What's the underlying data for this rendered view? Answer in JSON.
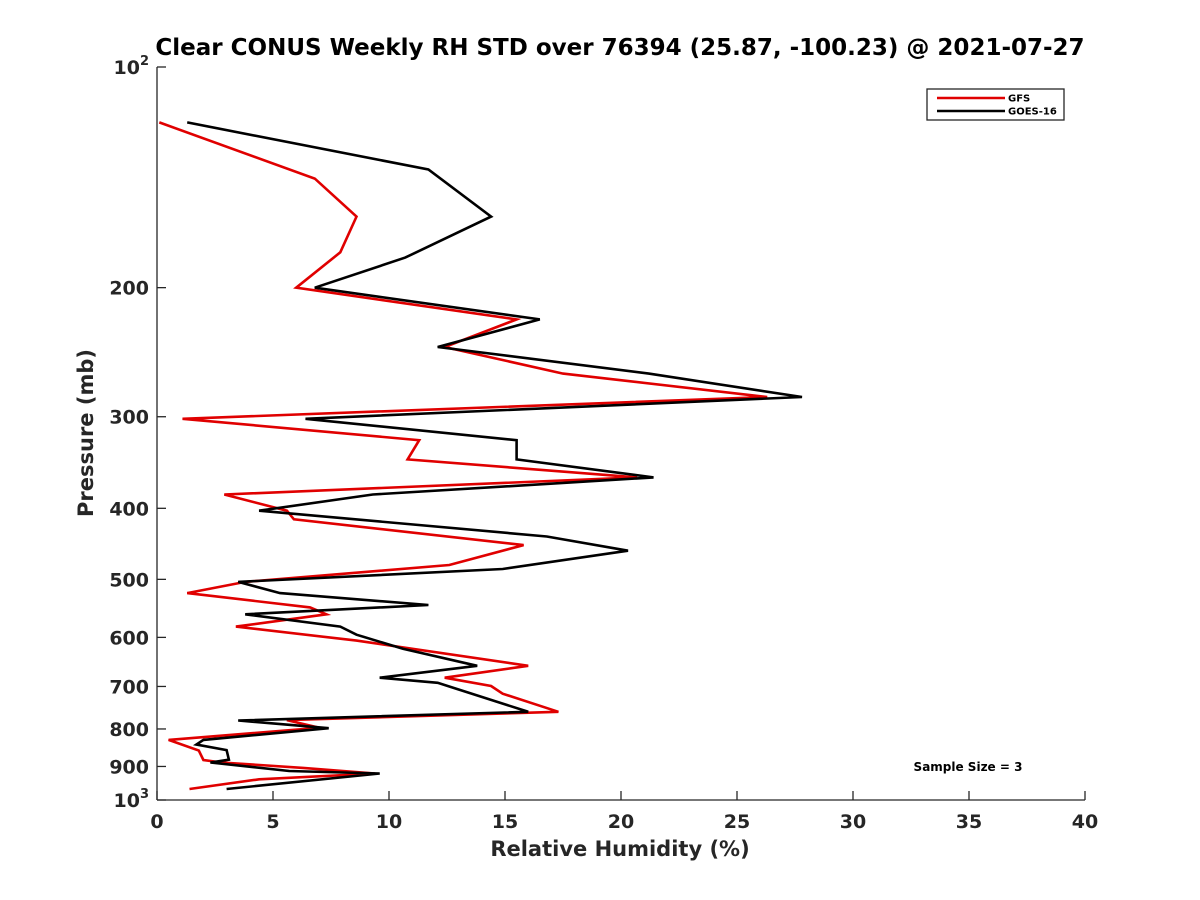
{
  "chart_data": {
    "type": "line",
    "title": "Clear CONUS Weekly RH STD over 76394 (25.87, -100.23) @ 2021-07-27",
    "xlabel": "Relative Humidity (%)",
    "ylabel": "Pressure (mb)",
    "xlim": [
      0,
      40
    ],
    "ylim": [
      100,
      1000
    ],
    "yscale": "log",
    "y_reversed": true,
    "grid": false,
    "x_ticks": [
      0,
      5,
      10,
      15,
      20,
      25,
      30,
      35,
      40
    ],
    "x_tick_labels": [
      "0",
      "5",
      "10",
      "15",
      "20",
      "25",
      "30",
      "35",
      "40"
    ],
    "y_ticks": [
      100,
      200,
      300,
      400,
      500,
      600,
      700,
      800,
      900,
      1000
    ],
    "y_tick_labels": [
      {
        "base": "10",
        "sup": "2"
      },
      {
        "base": "200",
        "sup": ""
      },
      {
        "base": "300",
        "sup": ""
      },
      {
        "base": "400",
        "sup": ""
      },
      {
        "base": "500",
        "sup": ""
      },
      {
        "base": "600",
        "sup": ""
      },
      {
        "base": "700",
        "sup": ""
      },
      {
        "base": "800",
        "sup": ""
      },
      {
        "base": "900",
        "sup": ""
      },
      {
        "base": "10",
        "sup": "3"
      }
    ],
    "legend_position": "top-right",
    "annotation": "Sample Size = 3",
    "series": [
      {
        "name": "GFS",
        "color": "#e00000",
        "points": [
          [
            0.1,
            119
          ],
          [
            6.8,
            142
          ],
          [
            8.6,
            160
          ],
          [
            7.9,
            179
          ],
          [
            6.0,
            200
          ],
          [
            15.5,
            221
          ],
          [
            12.4,
            241
          ],
          [
            17.5,
            262
          ],
          [
            26.3,
            282
          ],
          [
            1.1,
            302
          ],
          [
            11.3,
            323
          ],
          [
            10.8,
            343
          ],
          [
            20.7,
            363
          ],
          [
            2.9,
            383
          ],
          [
            5.6,
            403
          ],
          [
            5.9,
            414
          ],
          [
            15.8,
            449
          ],
          [
            12.6,
            478
          ],
          [
            3.8,
            504
          ],
          [
            1.3,
            522
          ],
          [
            6.6,
            546
          ],
          [
            7.3,
            558
          ],
          [
            3.4,
            580
          ],
          [
            8.6,
            606
          ],
          [
            16.0,
            656
          ],
          [
            12.4,
            681
          ],
          [
            14.4,
            699
          ],
          [
            14.9,
            716
          ],
          [
            17.3,
            758
          ],
          [
            5.6,
            778
          ],
          [
            7.0,
            797
          ],
          [
            0.5,
            828
          ],
          [
            1.8,
            856
          ],
          [
            2.0,
            882
          ],
          [
            2.8,
            889
          ],
          [
            6.3,
            904
          ],
          [
            9.4,
            920
          ],
          [
            4.4,
            937
          ],
          [
            1.4,
            966
          ]
        ]
      },
      {
        "name": "GOES-16",
        "color": "#000000",
        "points": [
          [
            1.3,
            119
          ],
          [
            11.7,
            138
          ],
          [
            14.4,
            160
          ],
          [
            10.7,
            182
          ],
          [
            6.8,
            200
          ],
          [
            16.5,
            221
          ],
          [
            12.1,
            241
          ],
          [
            21.2,
            262
          ],
          [
            27.8,
            282
          ],
          [
            6.4,
            302
          ],
          [
            15.5,
            323
          ],
          [
            15.5,
            343
          ],
          [
            21.4,
            363
          ],
          [
            9.3,
            383
          ],
          [
            4.4,
            403
          ],
          [
            16.8,
            437
          ],
          [
            20.3,
            457
          ],
          [
            14.9,
            484
          ],
          [
            3.5,
            504
          ],
          [
            5.3,
            522
          ],
          [
            11.7,
            542
          ],
          [
            3.8,
            558
          ],
          [
            7.9,
            580
          ],
          [
            8.6,
            595
          ],
          [
            10.6,
            622
          ],
          [
            13.8,
            656
          ],
          [
            9.6,
            681
          ],
          [
            12.1,
            692
          ],
          [
            12.9,
            705
          ],
          [
            16.0,
            758
          ],
          [
            3.5,
            779
          ],
          [
            7.4,
            798
          ],
          [
            2.0,
            828
          ],
          [
            1.7,
            840
          ],
          [
            3.0,
            855
          ],
          [
            3.1,
            881
          ],
          [
            2.3,
            889
          ],
          [
            5.7,
            913
          ],
          [
            9.6,
            920
          ],
          [
            3.0,
            966
          ]
        ]
      }
    ]
  }
}
